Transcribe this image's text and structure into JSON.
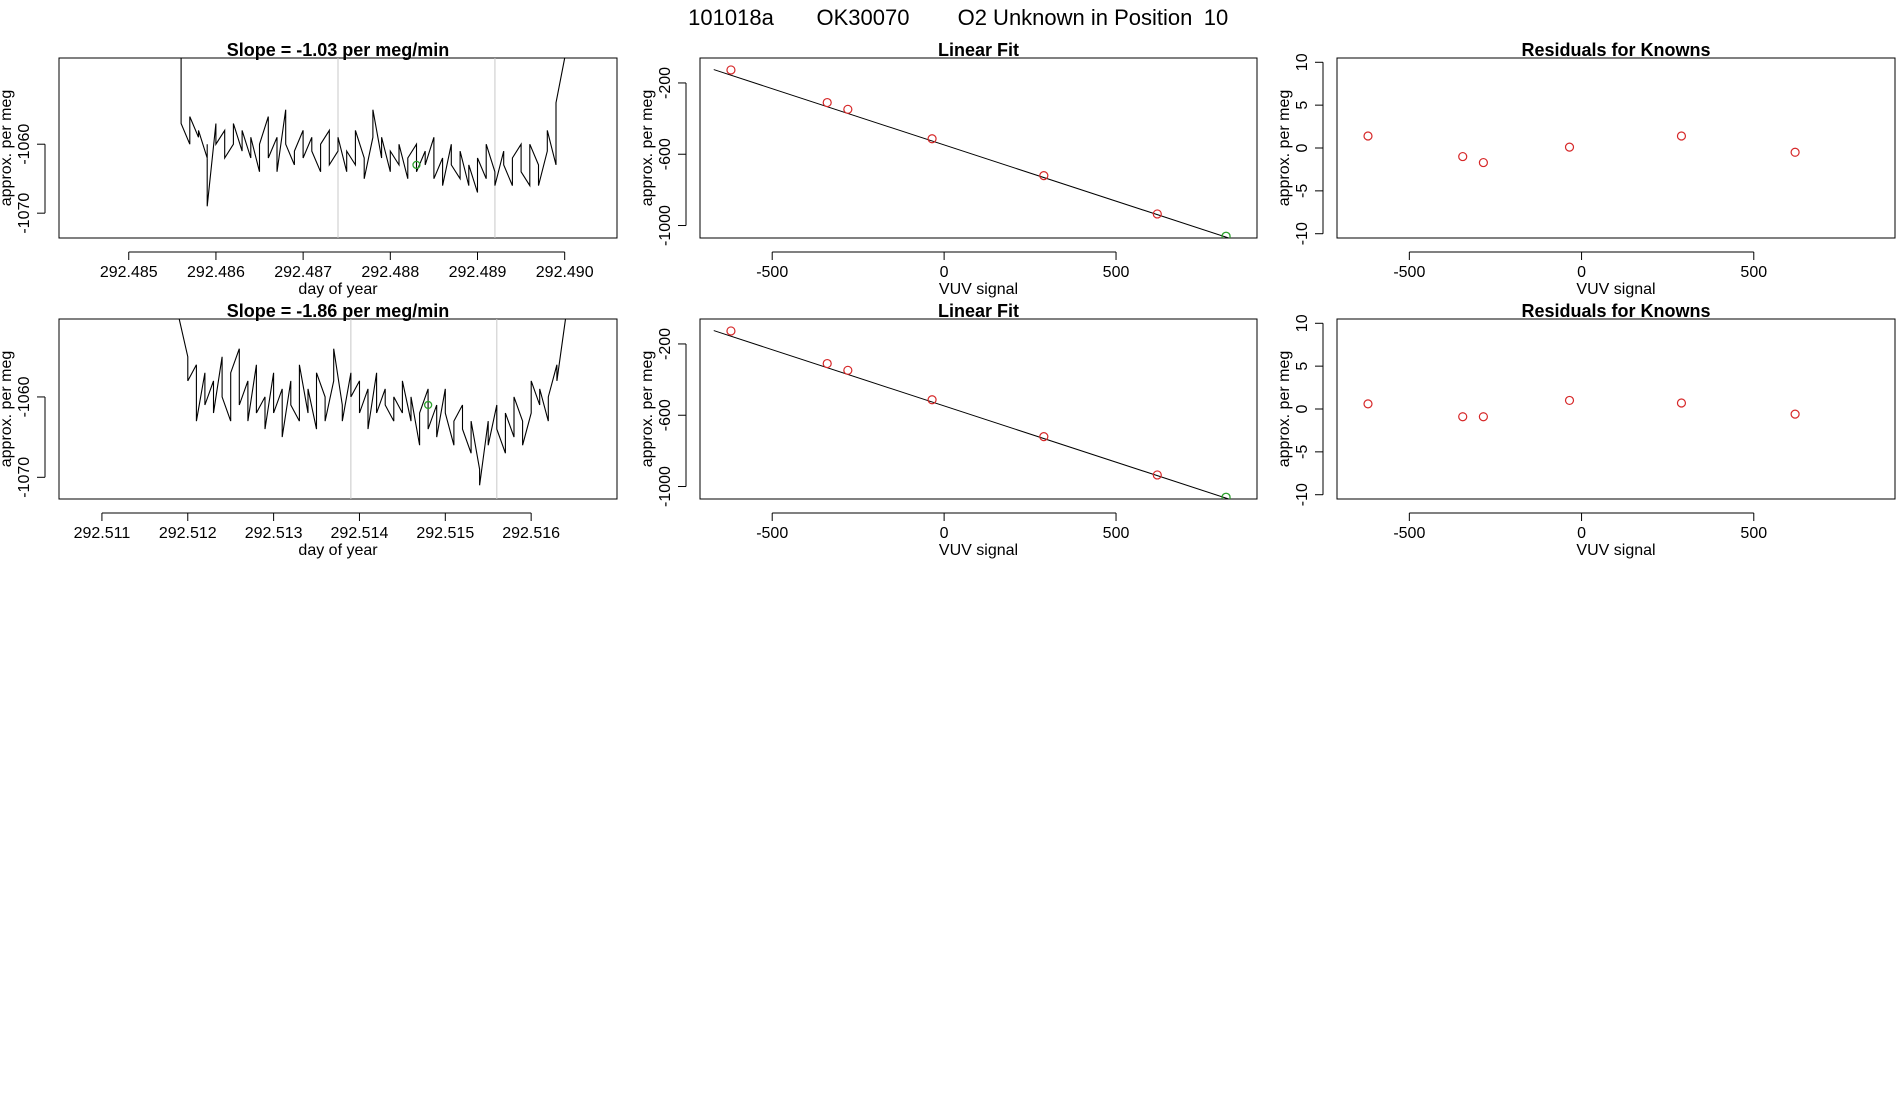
{
  "header": {
    "run_id": "101018a",
    "tank_id": "OK30070",
    "description": "O2 Unknown in Position",
    "position": "10"
  },
  "colors": {
    "line": "#000000",
    "known_point": "#d62728",
    "unknown_point": "#2ca02c",
    "divider": "#c8c8c8",
    "frame": "#000000"
  },
  "chart_data": [
    {
      "id": "row1-timeseries",
      "type": "line",
      "title": "Slope =  -1.03  per meg/min",
      "xlabel": "day of year",
      "ylabel": "approx. per meg",
      "xlim": [
        292.4842,
        292.4906
      ],
      "ylim": [
        -1073.6,
        -1047.5
      ],
      "x_ticks": [
        "292.485",
        "292.486",
        "292.487",
        "292.488",
        "292.489",
        "292.490"
      ],
      "y_ticks": [
        "-1070",
        "-1060"
      ],
      "vlines": [
        292.4874,
        292.4892
      ],
      "series": [
        {
          "x": [
            292.4856,
            292.4856,
            292.4857,
            292.4857,
            292.4858,
            292.4858,
            292.4859,
            292.4859,
            292.4859,
            292.486,
            292.486,
            292.4861,
            292.4861,
            292.4862,
            292.4862,
            292.4863,
            292.4863,
            292.4864,
            292.4864,
            292.4865,
            292.4865,
            292.4866,
            292.4866,
            292.4867,
            292.4867,
            292.4868,
            292.4868,
            292.4869,
            292.4869,
            292.487,
            292.487,
            292.4871,
            292.4871,
            292.4872,
            292.4872,
            292.4873,
            292.4873,
            292.4874,
            292.4874,
            292.4875,
            292.4875,
            292.4876,
            292.4876,
            292.4877,
            292.4877,
            292.4878,
            292.4878,
            292.4879,
            292.4879,
            292.488,
            292.488,
            292.4881,
            292.4881,
            292.4882,
            292.4882,
            292.4883,
            292.4883,
            292.4884,
            292.4884,
            292.4885,
            292.4885,
            292.4886,
            292.4886,
            292.4887,
            292.4887,
            292.4888,
            292.4888,
            292.4889,
            292.4889,
            292.489,
            292.489,
            292.4891,
            292.4891,
            292.4892,
            292.4892,
            292.4893,
            292.4893,
            292.4894,
            292.4894,
            292.4895,
            292.4895,
            292.4896,
            292.4896,
            292.4897,
            292.4897,
            292.4898,
            292.4898,
            292.4899,
            292.4899,
            292.49
          ],
          "y": [
            -1047.5,
            -1057,
            -1060,
            -1056,
            -1059,
            -1058,
            -1062,
            -1060,
            -1069,
            -1057,
            -1060,
            -1058,
            -1062,
            -1060,
            -1057,
            -1061,
            -1058,
            -1062,
            -1059,
            -1064,
            -1060,
            -1056,
            -1062,
            -1059,
            -1064,
            -1055,
            -1060,
            -1063,
            -1061,
            -1058,
            -1062,
            -1059,
            -1061,
            -1064,
            -1060,
            -1058,
            -1063,
            -1061,
            -1059,
            -1064,
            -1061,
            -1063,
            -1058,
            -1062,
            -1065,
            -1059,
            -1055,
            -1062,
            -1059,
            -1064,
            -1061,
            -1063,
            -1060,
            -1065,
            -1062,
            -1060,
            -1064,
            -1061,
            -1063,
            -1059,
            -1065,
            -1062,
            -1066,
            -1060,
            -1063,
            -1065,
            -1061,
            -1066,
            -1063,
            -1067,
            -1062,
            -1065,
            -1060,
            -1064,
            -1066,
            -1061,
            -1063,
            -1066,
            -1062,
            -1060,
            -1064,
            -1066,
            -1060,
            -1063,
            -1066,
            -1061,
            -1058,
            -1063,
            -1054,
            -1047.5
          ]
        }
      ],
      "marker": {
        "x": 292.4883,
        "y": -1063,
        "role": "unknown"
      }
    },
    {
      "id": "row1-linearfit",
      "type": "scatter",
      "title": "Linear Fit",
      "xlabel": "VUV signal",
      "ylabel": "approx. per meg",
      "xlim": [
        -710,
        910
      ],
      "ylim": [
        -1070,
        -60
      ],
      "x_ticks": [
        "-500",
        "0",
        "500"
      ],
      "y_ticks": [
        "-200",
        "-600",
        "-1000"
      ],
      "fit_line": {
        "x": [
          -670,
          850
        ],
        "y": [
          -125,
          -1084
        ]
      },
      "known_points": {
        "x": [
          -620,
          -340,
          -280,
          -35,
          290,
          620
        ],
        "y": [
          -127,
          -310,
          -348,
          -513,
          -720,
          -935
        ]
      },
      "unknown_points": {
        "x": [
          820
        ],
        "y": [
          -1060
        ]
      }
    },
    {
      "id": "row1-residuals",
      "type": "scatter",
      "title": "Residuals for Knowns",
      "xlabel": "VUV signal",
      "ylabel": "approx. per meg",
      "xlim": [
        -710,
        910
      ],
      "ylim": [
        -10.5,
        10.5
      ],
      "x_ticks": [
        "-500",
        "0",
        "500"
      ],
      "y_ticks": [
        "-10",
        "-5",
        "0",
        "5",
        "10"
      ],
      "known_points": {
        "x": [
          -620,
          -345,
          -285,
          -35,
          290,
          620
        ],
        "y": [
          1.4,
          -1.0,
          -1.7,
          0.1,
          1.4,
          -0.5
        ]
      }
    },
    {
      "id": "row2-timeseries",
      "type": "line",
      "title": "Slope =  -1.86  per meg/min",
      "xlabel": "day of year",
      "ylabel": "approx. per meg",
      "xlim": [
        292.5105,
        292.517
      ],
      "ylim": [
        -1072.7,
        -1050.3
      ],
      "x_ticks": [
        "292.511",
        "292.512",
        "292.513",
        "292.514",
        "292.515",
        "292.516"
      ],
      "y_ticks": [
        "-1070",
        "-1060"
      ],
      "vlines": [
        292.5139,
        292.5156
      ],
      "series": [
        {
          "x": [
            292.5119,
            292.512,
            292.512,
            292.5121,
            292.5121,
            292.5122,
            292.5122,
            292.5123,
            292.5123,
            292.5124,
            292.5124,
            292.5125,
            292.5125,
            292.5126,
            292.5126,
            292.5127,
            292.5127,
            292.5128,
            292.5128,
            292.5129,
            292.5129,
            292.513,
            292.513,
            292.5131,
            292.5131,
            292.5132,
            292.5132,
            292.5133,
            292.5133,
            292.5134,
            292.5134,
            292.5135,
            292.5135,
            292.5136,
            292.5136,
            292.5137,
            292.5137,
            292.5138,
            292.5138,
            292.5139,
            292.5139,
            292.514,
            292.514,
            292.5141,
            292.5141,
            292.5142,
            292.5142,
            292.5143,
            292.5143,
            292.5144,
            292.5144,
            292.5145,
            292.5145,
            292.5146,
            292.5146,
            292.5147,
            292.5147,
            292.5148,
            292.5148,
            292.5149,
            292.5149,
            292.515,
            292.515,
            292.5151,
            292.5151,
            292.5152,
            292.5152,
            292.5153,
            292.5153,
            292.5154,
            292.5154,
            292.5155,
            292.5155,
            292.5156,
            292.5156,
            292.5157,
            292.5157,
            292.5158,
            292.5158,
            292.5159,
            292.5159,
            292.516,
            292.516,
            292.5161,
            292.5161,
            292.5162,
            292.5162,
            292.5163,
            292.5163,
            292.5164
          ],
          "y": [
            -1050.3,
            -1055,
            -1058,
            -1056,
            -1063,
            -1057,
            -1061,
            -1058,
            -1062,
            -1055,
            -1060,
            -1063,
            -1057,
            -1054,
            -1061,
            -1058,
            -1063,
            -1056,
            -1062,
            -1060,
            -1064,
            -1057,
            -1062,
            -1059,
            -1065,
            -1058,
            -1061,
            -1063,
            -1056,
            -1062,
            -1059,
            -1064,
            -1057,
            -1060,
            -1063,
            -1058,
            -1054,
            -1061,
            -1063,
            -1057,
            -1060,
            -1058,
            -1062,
            -1059,
            -1064,
            -1057,
            -1062,
            -1059,
            -1061,
            -1063,
            -1060,
            -1062,
            -1058,
            -1063,
            -1060,
            -1066,
            -1062,
            -1059,
            -1064,
            -1061,
            -1065,
            -1059,
            -1062,
            -1066,
            -1063,
            -1061,
            -1064,
            -1067,
            -1063,
            -1069,
            -1071,
            -1063,
            -1066,
            -1061,
            -1064,
            -1067,
            -1062,
            -1065,
            -1060,
            -1063,
            -1066,
            -1062,
            -1058,
            -1061,
            -1059,
            -1063,
            -1060,
            -1056,
            -1058,
            -1050.3
          ]
        }
      ],
      "marker": {
        "x": 292.5148,
        "y": -1061,
        "role": "unknown"
      }
    },
    {
      "id": "row2-linearfit",
      "type": "scatter",
      "title": "Linear Fit",
      "xlabel": "VUV signal",
      "ylabel": "approx. per meg",
      "xlim": [
        -710,
        910
      ],
      "ylim": [
        -1070,
        -60
      ],
      "x_ticks": [
        "-500",
        "0",
        "500"
      ],
      "y_ticks": [
        "-200",
        "-600",
        "-1000"
      ],
      "fit_line": {
        "x": [
          -670,
          850
        ],
        "y": [
          -125,
          -1084
        ]
      },
      "known_points": {
        "x": [
          -620,
          -340,
          -280,
          -35,
          290,
          620
        ],
        "y": [
          -127,
          -310,
          -348,
          -513,
          -720,
          -935
        ]
      },
      "unknown_points": {
        "x": [
          820
        ],
        "y": [
          -1060
        ]
      }
    },
    {
      "id": "row2-residuals",
      "type": "scatter",
      "title": "Residuals for Knowns",
      "xlabel": "VUV signal",
      "ylabel": "approx. per meg",
      "xlim": [
        -710,
        910
      ],
      "ylim": [
        -10.5,
        10.5
      ],
      "x_ticks": [
        "-500",
        "0",
        "500"
      ],
      "y_ticks": [
        "-10",
        "-5",
        "0",
        "5",
        "10"
      ],
      "known_points": {
        "x": [
          -620,
          -345,
          -285,
          -35,
          290,
          620
        ],
        "y": [
          0.6,
          -0.9,
          -0.9,
          1.0,
          0.7,
          -0.6
        ]
      }
    }
  ]
}
